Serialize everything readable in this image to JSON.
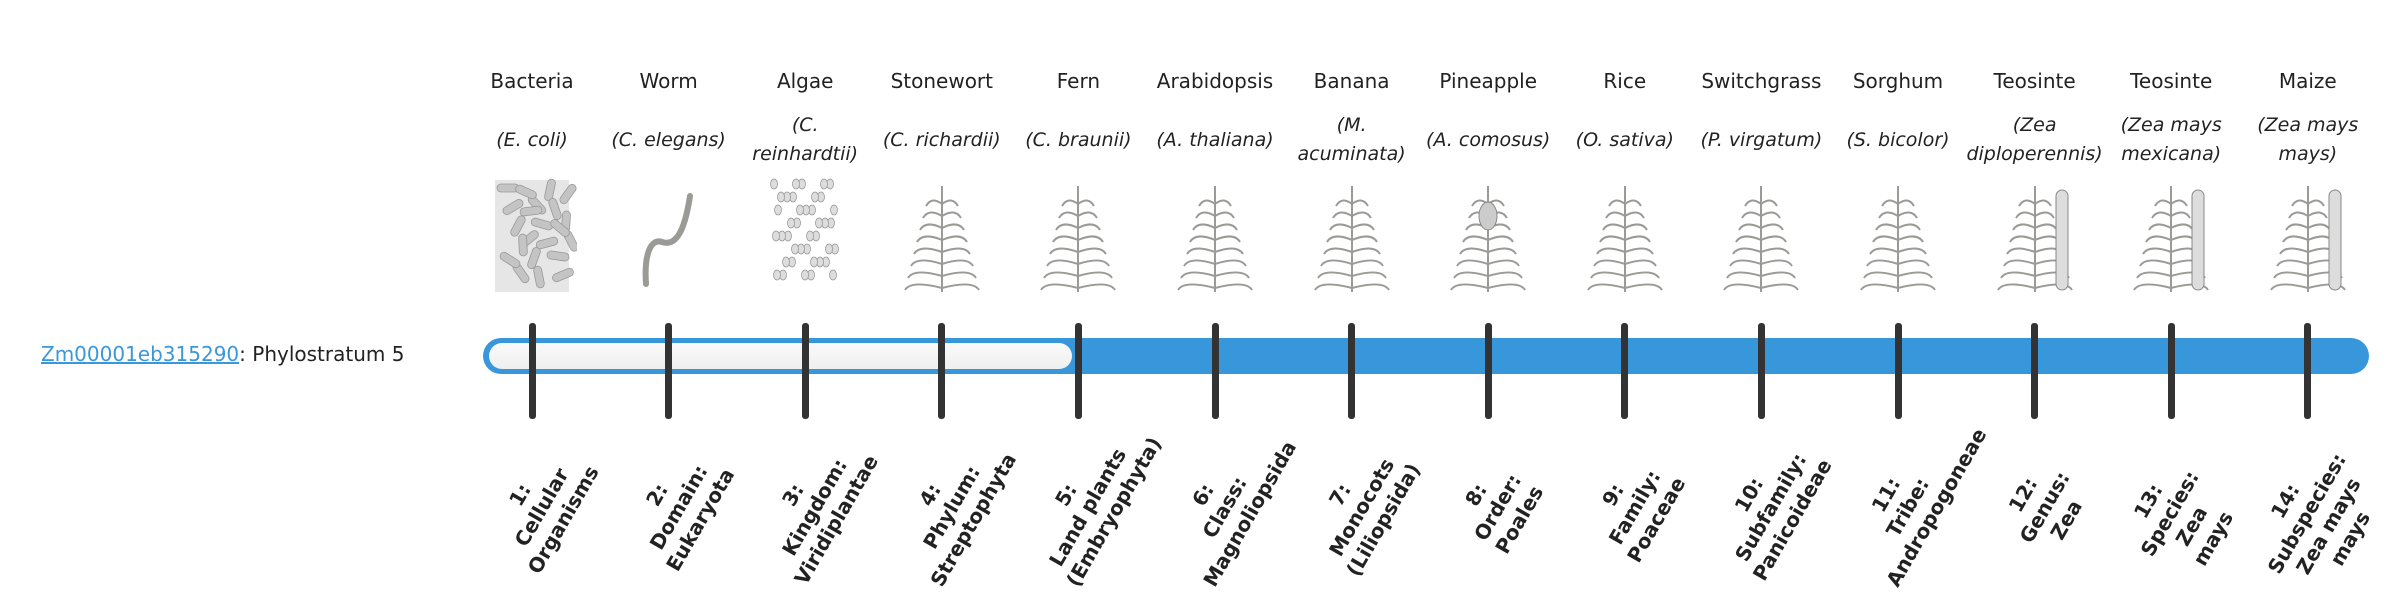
{
  "gene": {
    "id": "Zm00001eb315290",
    "suffix": ": Phylostratum 5"
  },
  "phylostratum_value": 5,
  "colors": {
    "accent": "#3897db",
    "tick": "#333333",
    "link": "#3a97da"
  },
  "strata": [
    {
      "common": "Bacteria",
      "scientific": "(E. coli)",
      "icon": "bacteria-icon",
      "rank": [
        "1:",
        "Cellular",
        "Organisms"
      ]
    },
    {
      "common": "Worm",
      "scientific": "(C. elegans)",
      "icon": "worm-icon",
      "rank": [
        "2:",
        "Domain:",
        "Eukaryota"
      ]
    },
    {
      "common": "Algae",
      "scientific": "(C. reinhardtii)",
      "icon": "algae-icon",
      "rank": [
        "3:",
        "Kingdom:",
        "Viridiplantae"
      ]
    },
    {
      "common": "Stonewort",
      "scientific": "(C. richardii)",
      "icon": "stonewort-icon",
      "rank": [
        "4:",
        "Phylum:",
        "Streptophyta"
      ]
    },
    {
      "common": "Fern",
      "scientific": "(C. braunii)",
      "icon": "fern-icon",
      "rank": [
        "5:",
        "Land plants",
        "(Embryophyta)"
      ]
    },
    {
      "common": "Arabidopsis",
      "scientific": "(A. thaliana)",
      "icon": "arabidopsis-icon",
      "rank": [
        "6:",
        "Class:",
        "Magnoliopsida"
      ]
    },
    {
      "common": "Banana",
      "scientific": "(M. acuminata)",
      "icon": "banana-icon",
      "rank": [
        "7:",
        "Monocots",
        "(Liliopsida)"
      ]
    },
    {
      "common": "Pineapple",
      "scientific": "(A. comosus)",
      "icon": "pineapple-icon",
      "rank": [
        "8:",
        "Order:",
        "Poales"
      ]
    },
    {
      "common": "Rice",
      "scientific": "(O. sativa)",
      "icon": "rice-icon",
      "rank": [
        "9:",
        "Family:",
        "Poaceae"
      ]
    },
    {
      "common": "Switchgrass",
      "scientific": "(P. virgatum)",
      "icon": "switchgrass-icon",
      "rank": [
        "10:",
        "Subfamily:",
        "Panicoideae"
      ]
    },
    {
      "common": "Sorghum",
      "scientific": "(S. bicolor)",
      "icon": "sorghum-icon",
      "rank": [
        "11:",
        "Tribe:",
        "Andropogoneae"
      ]
    },
    {
      "common": "Teosinte",
      "scientific": "(Zea diploperennis)",
      "icon": "teosinte-icon",
      "rank": [
        "12:",
        "Genus:",
        "Zea"
      ]
    },
    {
      "common": "Teosinte",
      "scientific": "(Zea mays mexicana)",
      "icon": "teosinte-icon",
      "rank": [
        "13:",
        "Species:",
        "Zea",
        "mays"
      ]
    },
    {
      "common": "Maize",
      "scientific": "(Zea mays mays)",
      "icon": "maize-icon",
      "rank": [
        "14:",
        "Subspecies:",
        "Zea mays",
        "mays"
      ]
    }
  ]
}
